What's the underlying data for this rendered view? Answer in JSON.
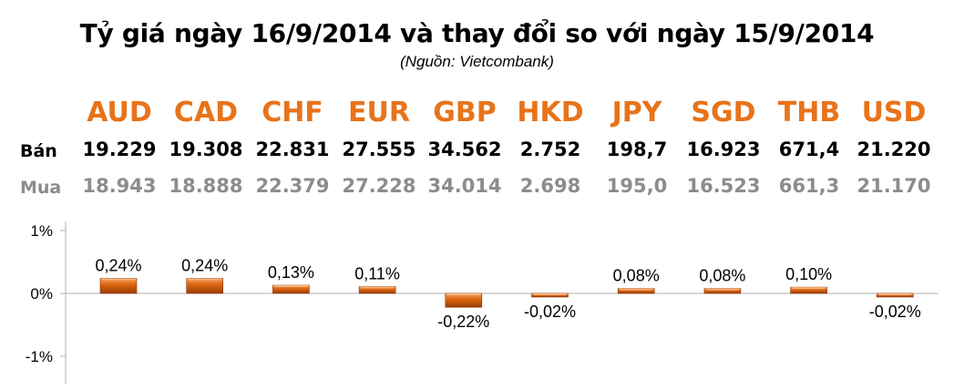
{
  "title": "Tỷ giá ngày 16/9/2014 và thay đổi so với ngày 15/9/2014",
  "source": "(Nguồn: Vietcombank)",
  "row_labels": {
    "sell": "Bán",
    "buy": "Mua"
  },
  "colors": {
    "currency": "#e8731a",
    "bar": "#c9560c",
    "bar_light": "#f08a3c",
    "buy_text": "#8c8c8c"
  },
  "chart_data": {
    "type": "bar",
    "categories": [
      "AUD",
      "CAD",
      "CHF",
      "EUR",
      "GBP",
      "HKD",
      "JPY",
      "SGD",
      "THB",
      "USD"
    ],
    "sell": [
      "19.229",
      "19.308",
      "22.831",
      "27.555",
      "34.562",
      "2.752",
      "198,7",
      "16.923",
      "671,4",
      "21.220"
    ],
    "buy": [
      "18.943",
      "18.888",
      "22.379",
      "27.228",
      "34.014",
      "2.698",
      "195,0",
      "16.523",
      "661,3",
      "21.170"
    ],
    "values": [
      0.24,
      0.24,
      0.13,
      0.11,
      -0.22,
      -0.02,
      0.08,
      0.08,
      0.1,
      -0.02
    ],
    "data_labels": [
      "0,24%",
      "0,24%",
      "0,13%",
      "0,11%",
      "-0,22%",
      "-0,02%",
      "0,08%",
      "0,08%",
      "0,10%",
      "-0,02%"
    ],
    "yticks": [
      {
        "value": 1,
        "label": "1%"
      },
      {
        "value": 0,
        "label": "0%"
      },
      {
        "value": -1,
        "label": "-1%"
      }
    ],
    "ylim": [
      -1,
      1
    ],
    "legend": "none",
    "grid": false
  }
}
